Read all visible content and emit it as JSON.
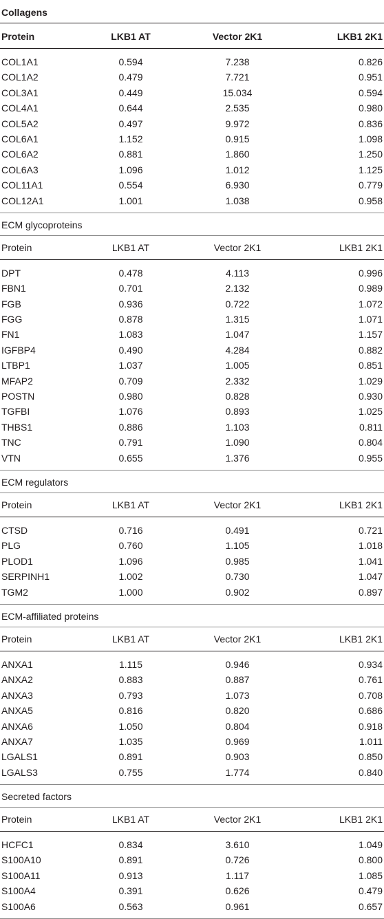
{
  "table": {
    "columns": [
      "Protein",
      "LKB1 AT",
      "Vector 2K1",
      "LKB1 2K1"
    ],
    "sections": [
      {
        "title": "Collagens",
        "rows": [
          [
            "COL1A1",
            "0.594",
            "7.238",
            "0.826"
          ],
          [
            "COL1A2",
            "0.479",
            "7.721",
            "0.951"
          ],
          [
            "COL3A1",
            "0.449",
            "15.034",
            "0.594"
          ],
          [
            "COL4A1",
            "0.644",
            "2.535",
            "0.980"
          ],
          [
            "COL5A2",
            "0.497",
            "9.972",
            "0.836"
          ],
          [
            "COL6A1",
            "1.152",
            "0.915",
            "1.098"
          ],
          [
            "COL6A2",
            "0.881",
            "1.860",
            "1.250"
          ],
          [
            "COL6A3",
            "1.096",
            "1.012",
            "1.125"
          ],
          [
            "COL11A1",
            "0.554",
            "6.930",
            "0.779"
          ],
          [
            "COL12A1",
            "1.001",
            "1.038",
            "0.958"
          ]
        ]
      },
      {
        "title": "ECM glycoproteins",
        "rows": [
          [
            "DPT",
            "0.478",
            "4.113",
            "0.996"
          ],
          [
            "FBN1",
            "0.701",
            "2.132",
            "0.989"
          ],
          [
            "FGB",
            "0.936",
            "0.722",
            "1.072"
          ],
          [
            "FGG",
            "0.878",
            "1.315",
            "1.071"
          ],
          [
            "FN1",
            "1.083",
            "1.047",
            "1.157"
          ],
          [
            "IGFBP4",
            "0.490",
            "4.284",
            "0.882"
          ],
          [
            "LTBP1",
            "1.037",
            "1.005",
            "0.851"
          ],
          [
            "MFAP2",
            "0.709",
            "2.332",
            "1.029"
          ],
          [
            "POSTN",
            "0.980",
            "0.828",
            "0.930"
          ],
          [
            "TGFBI",
            "1.076",
            "0.893",
            "1.025"
          ],
          [
            "THBS1",
            "0.886",
            "1.103",
            "0.811"
          ],
          [
            "TNC",
            "0.791",
            "1.090",
            "0.804"
          ],
          [
            "VTN",
            "0.655",
            "1.376",
            "0.955"
          ]
        ]
      },
      {
        "title": "ECM regulators",
        "rows": [
          [
            "CTSD",
            "0.716",
            "0.491",
            "0.721"
          ],
          [
            "PLG",
            "0.760",
            "1.105",
            "1.018"
          ],
          [
            "PLOD1",
            "1.096",
            "0.985",
            "1.041"
          ],
          [
            "SERPINH1",
            "1.002",
            "0.730",
            "1.047"
          ],
          [
            "TGM2",
            "1.000",
            "0.902",
            "0.897"
          ]
        ]
      },
      {
        "title": "ECM-affiliated proteins",
        "rows": [
          [
            "ANXA1",
            "1.115",
            "0.946",
            "0.934"
          ],
          [
            "ANXA2",
            "0.883",
            "0.887",
            "0.761"
          ],
          [
            "ANXA3",
            "0.793",
            "1.073",
            "0.708"
          ],
          [
            "ANXA5",
            "0.816",
            "0.820",
            "0.686"
          ],
          [
            "ANXA6",
            "1.050",
            "0.804",
            "0.918"
          ],
          [
            "ANXA7",
            "1.035",
            "0.969",
            "1.011"
          ],
          [
            "LGALS1",
            "0.891",
            "0.903",
            "0.850"
          ],
          [
            "LGALS3",
            "0.755",
            "1.774",
            "0.840"
          ]
        ]
      },
      {
        "title": "Secreted factors",
        "rows": [
          [
            "HCFC1",
            "0.834",
            "3.610",
            "1.049"
          ],
          [
            "S100A10",
            "0.891",
            "0.726",
            "0.800"
          ],
          [
            "S100A11",
            "0.913",
            "1.117",
            "1.085"
          ],
          [
            "S100A4",
            "0.391",
            "0.626",
            "0.479"
          ],
          [
            "S100A6",
            "0.563",
            "0.961",
            "0.657"
          ]
        ]
      }
    ]
  }
}
